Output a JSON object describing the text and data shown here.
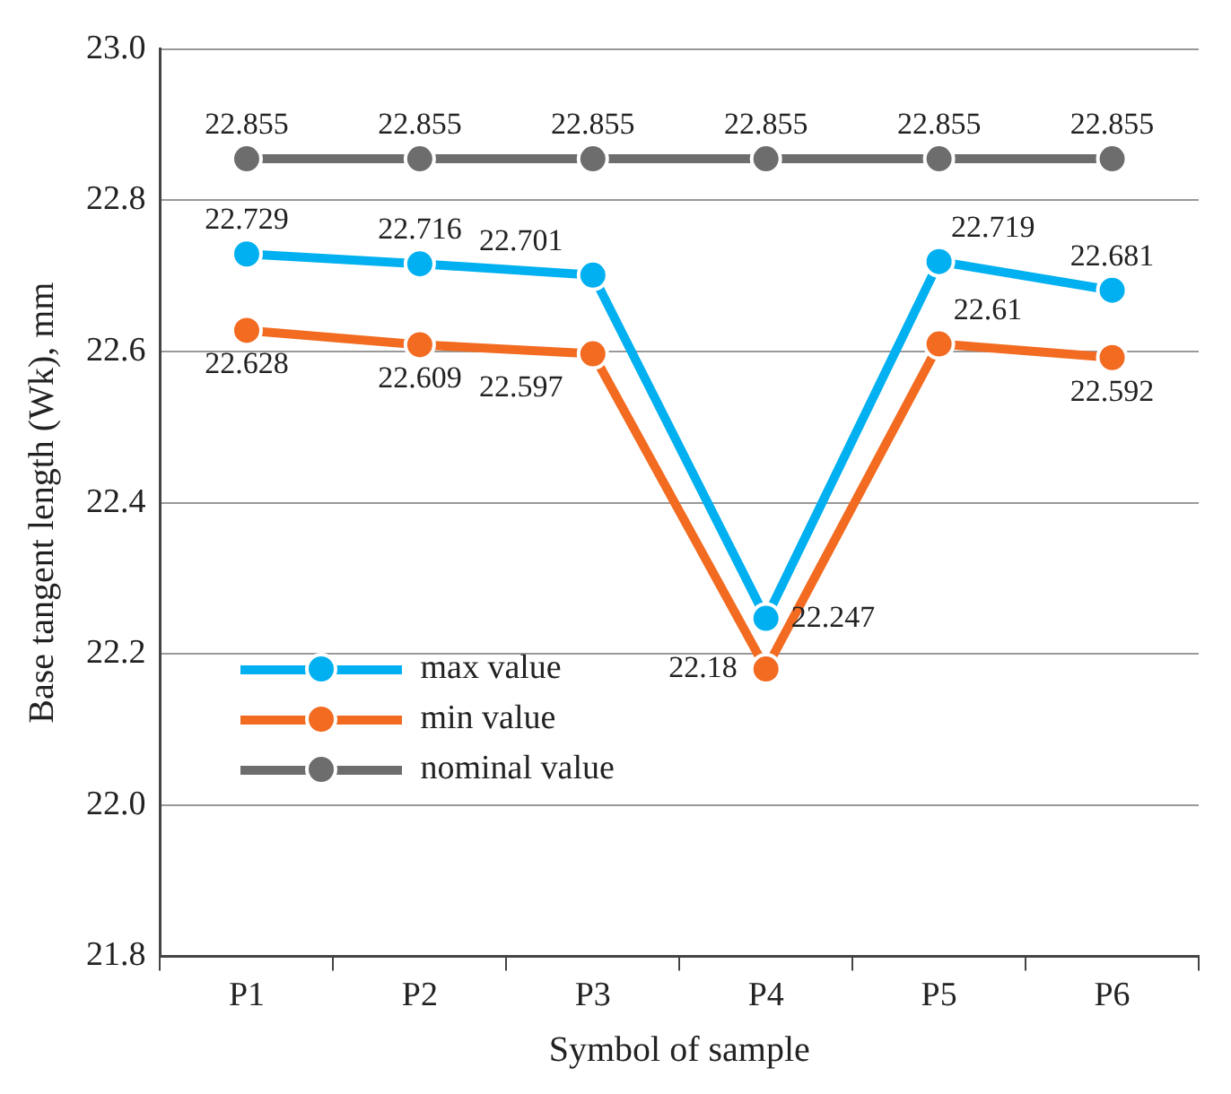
{
  "chart_data": {
    "type": "line",
    "xlabel": "Symbol of sample",
    "ylabel": "Base tangent length (Wk), mm",
    "categories": [
      "P1",
      "P2",
      "P3",
      "P4",
      "P5",
      "P6"
    ],
    "series": [
      {
        "name": "max value",
        "color": "#00b0f0",
        "values": [
          22.729,
          22.716,
          22.701,
          22.247,
          22.719,
          22.681
        ]
      },
      {
        "name": "min value",
        "color": "#f26b21",
        "values": [
          22.628,
          22.609,
          22.597,
          22.18,
          22.61,
          22.592
        ]
      },
      {
        "name": "nominal value",
        "color": "#6d6d6d",
        "values": [
          22.855,
          22.855,
          22.855,
          22.855,
          22.855,
          22.855
        ]
      }
    ],
    "ylim": [
      21.8,
      23.0
    ],
    "yticks": [
      {
        "value": 21.8,
        "label": "21.8"
      },
      {
        "value": 22.0,
        "label": "22.0"
      },
      {
        "value": 22.2,
        "label": "22.2"
      },
      {
        "value": 22.4,
        "label": "22.4"
      },
      {
        "value": 22.6,
        "label": "22.6"
      },
      {
        "value": 22.8,
        "label": "22.8"
      },
      {
        "value": 23.0,
        "label": "23.0"
      }
    ],
    "grid": "y",
    "legend": "bottom left",
    "marker": "circle",
    "line_style": "solid",
    "data_labels": true
  }
}
